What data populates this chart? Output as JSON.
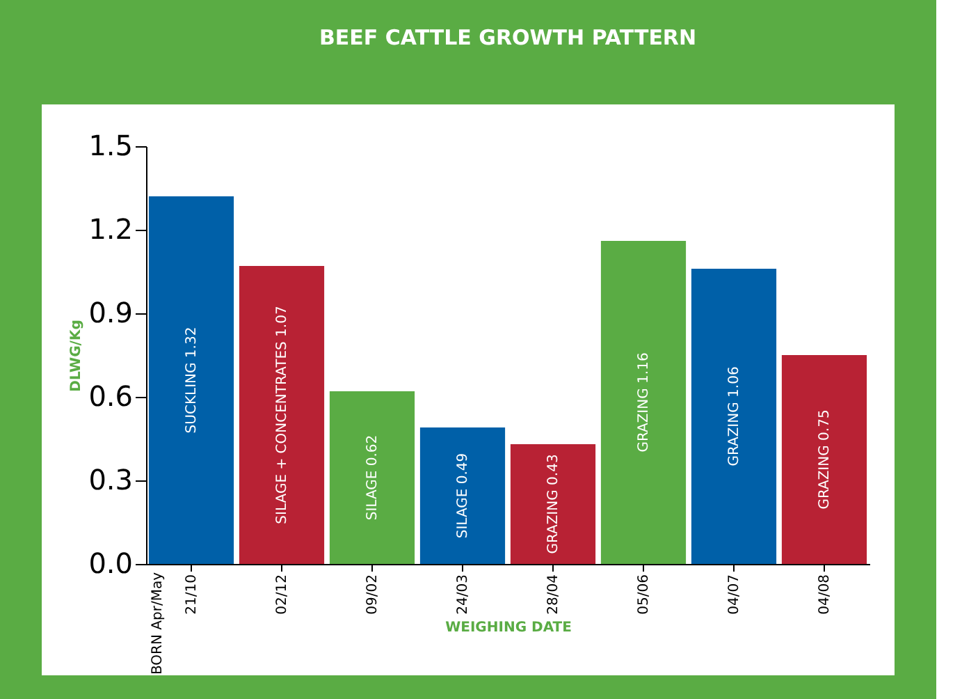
{
  "chart_data": {
    "type": "bar",
    "title": "BEEF CATTLE GROWTH PATTERN",
    "xlabel": "WEIGHING DATE",
    "ylabel": "DLWG/Kg",
    "categories": [
      "21/10",
      "02/12",
      "09/02",
      "24/03",
      "28/04",
      "05/06",
      "04/07",
      "04/08"
    ],
    "values": [
      1.32,
      1.07,
      0.62,
      0.49,
      0.43,
      1.16,
      1.06,
      0.75
    ],
    "colors": [
      "#0060a8",
      "#b82234",
      "#5aac44",
      "#0060a8",
      "#b82234",
      "#5aac44",
      "#0060a8",
      "#b82234"
    ],
    "value_labels": [
      "SUCKLING 1.32",
      "SILAGE + CONCENTRATES 1.07",
      "SILAGE 0.62",
      "SILAGE 0.49",
      "GRAZING 0.43",
      "GRAZING 1.16",
      "GRAZING 1.06",
      "GRAZING 0.75"
    ],
    "annotations": [
      "BORN Apr/May"
    ],
    "ylim": [
      0,
      1.5
    ],
    "yticks": [
      {
        "value": 0,
        "label": "0.0"
      },
      0.3,
      0.6,
      0.9,
      1.2,
      1.5
    ],
    "grid": false
  }
}
